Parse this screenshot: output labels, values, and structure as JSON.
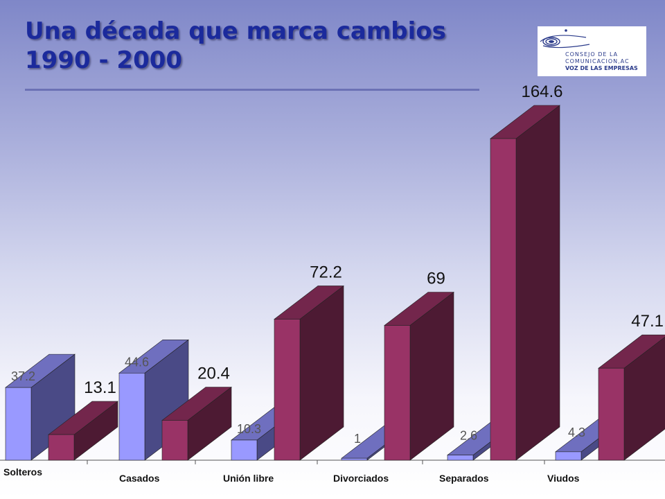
{
  "title": {
    "line1": "Una década que marca cambios",
    "line2": "1990 - 2000"
  },
  "logo": {
    "line1": "CONSEJO DE LA",
    "line2": "COMUNICACION,AC",
    "line3": "VOZ DE LAS EMPRESAS"
  },
  "colors": {
    "series_1990": "#9999ff",
    "series_2000": "#993366",
    "title": "#1b2a9c"
  },
  "chart_data": {
    "type": "bar",
    "style": "3d-clustered",
    "categories": [
      "Solteros",
      "Casados",
      "Unión libre",
      "Divorciados",
      "Separados",
      "Viudos"
    ],
    "series": [
      {
        "values": [
          37.2,
          44.6,
          10.3,
          1,
          2.6,
          4.3
        ]
      },
      {
        "values": [
          13.1,
          20.4,
          72.2,
          69,
          164.6,
          47.1
        ]
      }
    ],
    "data_labels": {
      "series_0": [
        "37.2",
        "44.6",
        "10.3",
        "1",
        "2.6",
        "4.3"
      ],
      "series_1": [
        "13.1",
        "20.4",
        "72.2",
        "69",
        "164.6",
        "47.1"
      ]
    },
    "title": "",
    "xlabel": "",
    "ylabel": "",
    "grid": false,
    "legend": "none"
  }
}
